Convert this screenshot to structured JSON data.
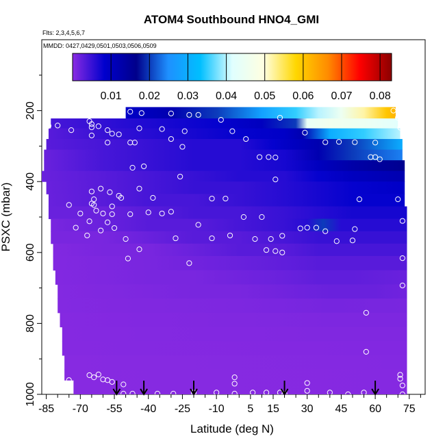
{
  "chart_data": {
    "type": "heatmap",
    "title": "ATOM4 Southbound HNO4_GMI",
    "annotations": [
      "Flts: 2,3,4,5,6,7",
      "MMDD: 0427,0429,0501,0503,0506,0509"
    ],
    "xlabel": "Latitude (deg N)",
    "ylabel": "PSXC (mbar)",
    "xlim": [
      -87,
      82
    ],
    "ylim": [
      1000,
      0
    ],
    "x_ticks": [
      -85,
      -70,
      -55,
      -40,
      -25,
      -10,
      5,
      15,
      30,
      45,
      60,
      75
    ],
    "x_tick_labels": [
      "-85",
      "-70",
      "-55",
      "-40",
      "-25",
      "-10",
      "5",
      "15",
      "30",
      "45",
      "60",
      "75"
    ],
    "y_ticks": [
      200,
      400,
      600,
      800,
      1000
    ],
    "y_tick_labels": [
      "200",
      "400",
      "600",
      "800",
      "1000"
    ],
    "colorbar": {
      "range": [
        0,
        0.083
      ],
      "ticks": [
        0.01,
        0.02,
        0.03,
        0.04,
        0.05,
        0.06,
        0.07,
        0.08
      ],
      "tick_labels": [
        "0.01",
        "0.02",
        "0.03",
        "0.04",
        "0.05",
        "0.06",
        "0.07",
        "0.08"
      ],
      "colors": [
        "#8a2be2",
        "#0000cd",
        "#00008b",
        "#1e90ff",
        "#00bfff",
        "#e0ffff",
        "#ffffe0",
        "#ffd700",
        "#ff8c00",
        "#ff0000",
        "#8b0000"
      ]
    },
    "profile_latitudes": [
      -54,
      -42,
      -20,
      20,
      60
    ],
    "bands": [
      {
        "p": [
          190,
          222
        ],
        "xmin": -50,
        "xmax": 69,
        "x": [
          -50,
          -30,
          -10,
          10,
          25,
          35,
          45,
          55,
          65,
          69
        ],
        "values": [
          0.009,
          0.012,
          0.02,
          0.028,
          0.035,
          0.04,
          0.045,
          0.052,
          0.06,
          0.062
        ]
      },
      {
        "p": [
          222,
          250
        ],
        "xmin": -83,
        "xmax": 70,
        "x": [
          -83,
          -65,
          -50,
          -30,
          -10,
          10,
          25,
          30,
          40,
          55,
          70
        ],
        "values": [
          0.004,
          0.005,
          0.006,
          0.007,
          0.008,
          0.01,
          0.02,
          0.044,
          0.046,
          0.045,
          0.042
        ]
      },
      {
        "p": [
          250,
          280
        ],
        "xmin": -84,
        "xmax": 71,
        "x": [
          -84,
          -60,
          -40,
          -20,
          0,
          20,
          28,
          40,
          55,
          71
        ],
        "values": [
          0.003,
          0.005,
          0.006,
          0.007,
          0.008,
          0.009,
          0.012,
          0.03,
          0.035,
          0.04
        ]
      },
      {
        "p": [
          280,
          310
        ],
        "xmin": -85,
        "xmax": 72,
        "x": [
          -85,
          -60,
          -40,
          -20,
          0,
          15,
          25,
          35,
          50,
          72
        ],
        "values": [
          0.003,
          0.004,
          0.005,
          0.006,
          0.006,
          0.008,
          0.01,
          0.012,
          0.02,
          0.03
        ]
      },
      {
        "p": [
          310,
          340
        ],
        "xmin": -86,
        "xmax": 72,
        "x": [
          -86,
          -60,
          -40,
          -20,
          0,
          20,
          35,
          50,
          72
        ],
        "values": [
          0.002,
          0.004,
          0.005,
          0.006,
          0.006,
          0.007,
          0.012,
          0.02,
          0.024
        ]
      },
      {
        "p": [
          340,
          370
        ],
        "xmin": -86,
        "xmax": 73,
        "x": [
          -86,
          -60,
          -40,
          -20,
          0,
          20,
          35,
          50,
          73
        ],
        "values": [
          0.002,
          0.004,
          0.005,
          0.006,
          0.006,
          0.007,
          0.01,
          0.013,
          0.016
        ]
      },
      {
        "p": [
          370,
          400
        ],
        "xmin": -87,
        "xmax": 73,
        "x": [
          -87,
          -60,
          -40,
          -20,
          0,
          20,
          35,
          50,
          73
        ],
        "values": [
          0.002,
          0.003,
          0.004,
          0.005,
          0.006,
          0.006,
          0.008,
          0.01,
          0.012
        ]
      },
      {
        "p": [
          400,
          435
        ],
        "xmin": -85,
        "xmax": 73,
        "x": [
          -85,
          -60,
          -40,
          -20,
          0,
          20,
          35,
          50,
          73
        ],
        "values": [
          0.002,
          0.003,
          0.004,
          0.005,
          0.005,
          0.006,
          0.007,
          0.008,
          0.009
        ]
      },
      {
        "p": [
          435,
          470
        ],
        "xmin": -84,
        "xmax": 73,
        "x": [
          -84,
          -60,
          -40,
          -20,
          0,
          20,
          35,
          50,
          73
        ],
        "values": [
          0.002,
          0.003,
          0.004,
          0.004,
          0.005,
          0.006,
          0.007,
          0.008,
          0.008
        ]
      },
      {
        "p": [
          470,
          505
        ],
        "xmin": -84,
        "xmax": 74,
        "x": [
          -84,
          -60,
          -40,
          -20,
          0,
          20,
          35,
          50,
          74
        ],
        "values": [
          0.002,
          0.002,
          0.003,
          0.004,
          0.004,
          0.005,
          0.006,
          0.007,
          0.007
        ]
      },
      {
        "p": [
          505,
          540
        ],
        "xmin": -83,
        "xmax": 74,
        "x": [
          -83,
          -60,
          -40,
          -20,
          0,
          20,
          30,
          37,
          45,
          74
        ],
        "values": [
          0.001,
          0.002,
          0.003,
          0.003,
          0.004,
          0.005,
          0.006,
          0.02,
          0.006,
          0.006
        ]
      },
      {
        "p": [
          540,
          575
        ],
        "xmin": -83,
        "xmax": 74,
        "x": [
          -83,
          -60,
          -40,
          -20,
          0,
          20,
          35,
          50,
          74
        ],
        "values": [
          0.001,
          0.001,
          0.002,
          0.003,
          0.003,
          0.004,
          0.005,
          0.005,
          0.005
        ]
      },
      {
        "p": [
          575,
          610
        ],
        "xmin": -82,
        "xmax": 74,
        "x": [
          -82,
          -60,
          -40,
          -20,
          0,
          20,
          35,
          50,
          74
        ],
        "values": [
          0.0005,
          0.001,
          0.001,
          0.002,
          0.003,
          0.003,
          0.004,
          0.004,
          0.004
        ]
      },
      {
        "p": [
          610,
          650
        ],
        "xmin": -82,
        "xmax": 74,
        "x": [
          -82,
          -60,
          -40,
          -20,
          0,
          20,
          35,
          50,
          74
        ],
        "values": [
          0.0005,
          0.0008,
          0.001,
          0.0015,
          0.002,
          0.0025,
          0.003,
          0.003,
          0.003
        ]
      },
      {
        "p": [
          650,
          690
        ],
        "xmin": -81,
        "xmax": 74,
        "x": [
          -81,
          -60,
          -40,
          -20,
          0,
          20,
          35,
          50,
          74
        ],
        "values": [
          0.0005,
          0.0007,
          0.001,
          0.001,
          0.0015,
          0.002,
          0.0025,
          0.0025,
          0.002
        ]
      },
      {
        "p": [
          690,
          730
        ],
        "xmin": -80,
        "xmax": 74,
        "x": [
          -80,
          -60,
          -40,
          -20,
          0,
          20,
          40,
          60,
          74
        ],
        "values": [
          0.0004,
          0.0006,
          0.0008,
          0.001,
          0.001,
          0.0015,
          0.002,
          0.002,
          0.0015
        ]
      },
      {
        "p": [
          730,
          770
        ],
        "xmin": -80,
        "xmax": 74,
        "x": [
          -80,
          -40,
          0,
          40,
          74
        ],
        "values": [
          0.0004,
          0.0006,
          0.0008,
          0.0012,
          0.001
        ]
      },
      {
        "p": [
          770,
          810
        ],
        "xmin": -79,
        "xmax": 74,
        "x": [
          -79,
          -40,
          0,
          40,
          74
        ],
        "values": [
          0.0003,
          0.0005,
          0.0006,
          0.0008,
          0.0008
        ]
      },
      {
        "p": [
          810,
          850
        ],
        "xmin": -78,
        "xmax": 74,
        "x": [
          -78,
          -40,
          0,
          40,
          74
        ],
        "values": [
          0.0003,
          0.0004,
          0.0005,
          0.0006,
          0.0006
        ]
      },
      {
        "p": [
          850,
          890
        ],
        "xmin": -78,
        "xmax": 74,
        "x": [
          -78,
          74
        ],
        "values": [
          0.0003,
          0.0005
        ]
      },
      {
        "p": [
          890,
          930
        ],
        "xmin": -77,
        "xmax": 74,
        "x": [
          -77,
          74
        ],
        "values": [
          0.0002,
          0.0004
        ]
      },
      {
        "p": [
          930,
          960
        ],
        "xmin": -77,
        "xmax": 74,
        "x": [
          -77,
          74
        ],
        "values": [
          0.0002,
          0.0003
        ]
      },
      {
        "p": [
          960,
          1000
        ],
        "xmin": -73,
        "xmax": 74,
        "x": [
          -73,
          74
        ],
        "values": [
          0.0002,
          0.0003
        ]
      }
    ],
    "observations": [
      {
        "x": -43,
        "p": 207
      },
      {
        "x": -58,
        "p": 202
      },
      {
        "x": -48,
        "p": 203
      },
      {
        "x": -30,
        "p": 208
      },
      {
        "x": -22,
        "p": 212
      },
      {
        "x": -18,
        "p": 212
      },
      {
        "x": -8,
        "p": 226
      },
      {
        "x": 18,
        "p": 220
      },
      {
        "x": 68,
        "p": 200
      },
      {
        "x": 70,
        "p": 220
      },
      {
        "x": -84,
        "p": 243
      },
      {
        "x": -80,
        "p": 242
      },
      {
        "x": -66,
        "p": 230
      },
      {
        "x": -65,
        "p": 238
      },
      {
        "x": -65,
        "p": 247
      },
      {
        "x": -62,
        "p": 244
      },
      {
        "x": -74,
        "p": 255
      },
      {
        "x": -58,
        "p": 255
      },
      {
        "x": -44,
        "p": 250
      },
      {
        "x": -34,
        "p": 252
      },
      {
        "x": -24,
        "p": 258
      },
      {
        "x": -3,
        "p": 258
      },
      {
        "x": 29,
        "p": 262
      },
      {
        "x": 71,
        "p": 248
      },
      {
        "x": -65,
        "p": 270
      },
      {
        "x": -56,
        "p": 265
      },
      {
        "x": -53,
        "p": 267
      },
      {
        "x": -30,
        "p": 280
      },
      {
        "x": 3,
        "p": 280
      },
      {
        "x": -58,
        "p": 290
      },
      {
        "x": -48,
        "p": 290
      },
      {
        "x": -46,
        "p": 290
      },
      {
        "x": -25,
        "p": 302
      },
      {
        "x": 38,
        "p": 289
      },
      {
        "x": 44,
        "p": 288
      },
      {
        "x": 51,
        "p": 289
      },
      {
        "x": 60,
        "p": 290
      },
      {
        "x": 9,
        "p": 331
      },
      {
        "x": 13,
        "p": 331
      },
      {
        "x": 16,
        "p": 332
      },
      {
        "x": 58,
        "p": 331
      },
      {
        "x": 60,
        "p": 331
      },
      {
        "x": 62,
        "p": 337
      },
      {
        "x": -47,
        "p": 361
      },
      {
        "x": -42,
        "p": 357
      },
      {
        "x": -26,
        "p": 386
      },
      {
        "x": 16,
        "p": 394
      },
      {
        "x": -61,
        "p": 420
      },
      {
        "x": -65,
        "p": 428
      },
      {
        "x": -57,
        "p": 430
      },
      {
        "x": -53,
        "p": 440
      },
      {
        "x": -44,
        "p": 420
      },
      {
        "x": -64,
        "p": 450
      },
      {
        "x": -52,
        "p": 446
      },
      {
        "x": -38,
        "p": 446
      },
      {
        "x": -12,
        "p": 448
      },
      {
        "x": -6,
        "p": 448
      },
      {
        "x": 53,
        "p": 450
      },
      {
        "x": 70,
        "p": 450
      },
      {
        "x": -75,
        "p": 466
      },
      {
        "x": -65,
        "p": 462
      },
      {
        "x": -64,
        "p": 466
      },
      {
        "x": -56,
        "p": 470
      },
      {
        "x": -63,
        "p": 482
      },
      {
        "x": -60,
        "p": 490
      },
      {
        "x": -70,
        "p": 490
      },
      {
        "x": -56,
        "p": 492
      },
      {
        "x": -48,
        "p": 492
      },
      {
        "x": -40,
        "p": 487
      },
      {
        "x": -34,
        "p": 490
      },
      {
        "x": -30,
        "p": 485
      },
      {
        "x": 2,
        "p": 500
      },
      {
        "x": -66,
        "p": 512
      },
      {
        "x": -58,
        "p": 515
      },
      {
        "x": -18,
        "p": 522
      },
      {
        "x": 10,
        "p": 500
      },
      {
        "x": -72,
        "p": 530
      },
      {
        "x": -61,
        "p": 538
      },
      {
        "x": -55,
        "p": 531
      },
      {
        "x": 27,
        "p": 532
      },
      {
        "x": 30,
        "p": 530
      },
      {
        "x": 34,
        "p": 530
      },
      {
        "x": 38,
        "p": 540
      },
      {
        "x": 51,
        "p": 534
      },
      {
        "x": 72,
        "p": 511
      },
      {
        "x": -67,
        "p": 552
      },
      {
        "x": -50,
        "p": 562
      },
      {
        "x": -28,
        "p": 560
      },
      {
        "x": -12,
        "p": 560
      },
      {
        "x": -4,
        "p": 552
      },
      {
        "x": 7,
        "p": 562
      },
      {
        "x": 14,
        "p": 562
      },
      {
        "x": 19,
        "p": 553
      },
      {
        "x": 43,
        "p": 568
      },
      {
        "x": 50,
        "p": 566
      },
      {
        "x": -44,
        "p": 591
      },
      {
        "x": 12,
        "p": 593
      },
      {
        "x": 16,
        "p": 596
      },
      {
        "x": 19,
        "p": 600
      },
      {
        "x": -49,
        "p": 617
      },
      {
        "x": -22,
        "p": 630
      },
      {
        "x": 72,
        "p": 616
      },
      {
        "x": 72,
        "p": 693
      },
      {
        "x": 56,
        "p": 770
      },
      {
        "x": 56,
        "p": 880
      },
      {
        "x": -75,
        "p": 960
      },
      {
        "x": -66,
        "p": 946
      },
      {
        "x": -64,
        "p": 952
      },
      {
        "x": -62,
        "p": 944
      },
      {
        "x": -60,
        "p": 958
      },
      {
        "x": -58,
        "p": 960
      },
      {
        "x": -56,
        "p": 965
      },
      {
        "x": -51,
        "p": 972
      },
      {
        "x": -51,
        "p": 998
      },
      {
        "x": -47,
        "p": 998
      },
      {
        "x": -36,
        "p": 998
      },
      {
        "x": -29,
        "p": 998
      },
      {
        "x": -20,
        "p": 995
      },
      {
        "x": -10,
        "p": 995
      },
      {
        "x": -2,
        "p": 952
      },
      {
        "x": -2,
        "p": 970
      },
      {
        "x": -2,
        "p": 998
      },
      {
        "x": 6,
        "p": 995
      },
      {
        "x": 12,
        "p": 995
      },
      {
        "x": 18,
        "p": 995
      },
      {
        "x": 20,
        "p": 998
      },
      {
        "x": 30,
        "p": 968
      },
      {
        "x": 30,
        "p": 990
      },
      {
        "x": 40,
        "p": 995
      },
      {
        "x": 48,
        "p": 1000
      },
      {
        "x": 55,
        "p": 995
      },
      {
        "x": 71,
        "p": 945
      },
      {
        "x": 71,
        "p": 956
      },
      {
        "x": 72,
        "p": 975
      },
      {
        "x": 72,
        "p": 1000
      }
    ]
  }
}
